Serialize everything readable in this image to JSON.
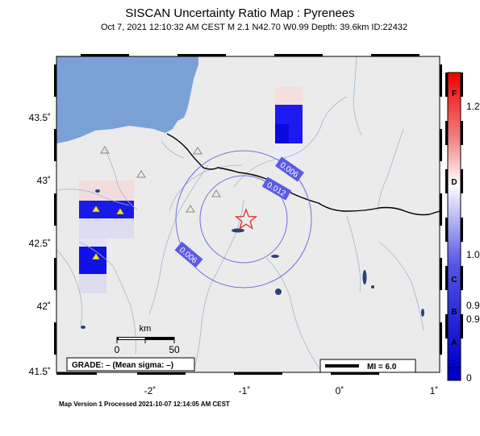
{
  "map": {
    "title": "SISCAN Uncertainty Ratio Map : Pyrenees",
    "subtitle": "Oct  7, 2021 12:10:32 AM CEST   M 2.1   N42.70 W0.99   Depth: 39.6km   ID:22432",
    "footer": "Map Version 1 Processed 2021-10-07 12:14:05 AM CEST",
    "lat_ticks": [
      "43.5˚",
      "43˚",
      "42.5˚",
      "42˚",
      "41.5˚"
    ],
    "lon_ticks": [
      "-2˚",
      "-1˚",
      "0˚",
      "1˚"
    ],
    "contour_labels": [
      "0.006",
      "0.012",
      "0.006"
    ],
    "scale": {
      "unit": "km",
      "zero": "0",
      "max": "50"
    },
    "grade_box": "GRADE: – (Mean sigma: –)",
    "mi_legend": "MI = 6.0",
    "epicenter_icon": "star-icon",
    "station_icon": "triangle-icon",
    "colors": {
      "sea": "#7aa1d6",
      "land": "#ebebeb",
      "border": "#000000",
      "rivers": "#9bb7d6",
      "contour": "#6f70e0",
      "epicenter": "#e0302a"
    }
  },
  "colorbar": {
    "letters": [
      "F",
      "D",
      "C",
      "B",
      "A"
    ],
    "values": [
      "1.2",
      "1.0",
      "0.9",
      "0.9",
      "0"
    ]
  }
}
